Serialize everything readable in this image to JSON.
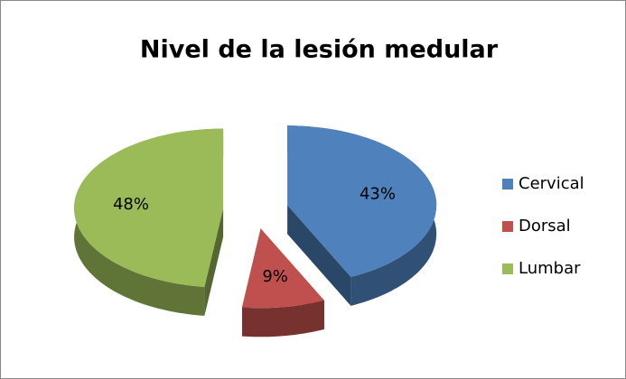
{
  "chart_data": {
    "type": "pie",
    "title": "Nivel de la lesión medular",
    "categories": [
      "Cervical",
      "Dorsal",
      "Lumbar"
    ],
    "values": [
      43,
      9,
      48
    ],
    "value_labels": [
      "43%",
      "9%",
      "48%"
    ],
    "colors": [
      "#4f81bd",
      "#c0504d",
      "#9bbb59"
    ],
    "legend": "right"
  }
}
